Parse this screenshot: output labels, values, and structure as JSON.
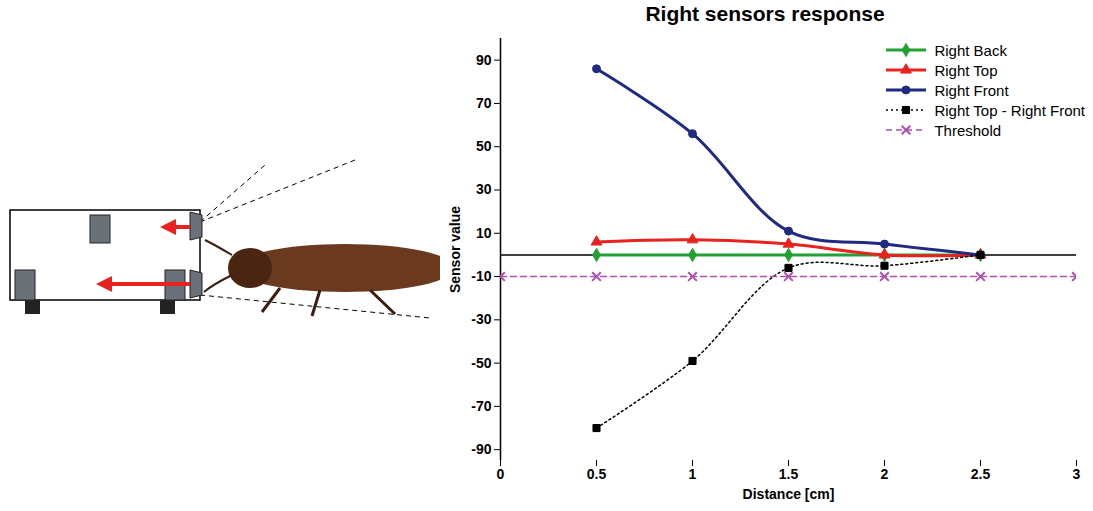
{
  "chart_data": {
    "type": "line",
    "title": "Right sensors response",
    "x_label": "Distance [cm]",
    "y_label": "Sensor value",
    "x": [
      0,
      0.5,
      1,
      1.5,
      2,
      2.5,
      3
    ],
    "xlim": [
      0,
      3
    ],
    "xticks": [
      0,
      0.5,
      1,
      1.5,
      2,
      2.5,
      3
    ],
    "ylim": [
      -95,
      100
    ],
    "yticks": [
      -90,
      -70,
      -50,
      -30,
      -10,
      10,
      30,
      50,
      70,
      90
    ],
    "legend": "top-right",
    "series": [
      {
        "name": "Right Back",
        "color": "#22a033",
        "marker": "diamond",
        "line_style": "solid",
        "values": [
          null,
          0,
          0,
          0,
          0,
          0,
          null
        ]
      },
      {
        "name": "Right Top",
        "color": "#e8231f",
        "marker": "triangle",
        "line_style": "solid",
        "values": [
          null,
          6,
          7,
          5,
          0,
          0,
          null
        ]
      },
      {
        "name": "Right Front",
        "color": "#1f2a80",
        "marker": "circle",
        "line_style": "solid",
        "values": [
          null,
          86,
          56,
          11,
          5,
          0,
          null
        ]
      },
      {
        "name": "Right Top - Right Front",
        "color": "#000000",
        "marker": "square",
        "line_style": "dotted",
        "values": [
          null,
          -80,
          -49,
          -6,
          -5,
          0,
          null
        ]
      },
      {
        "name": "Threshold",
        "color": "#b04fb0",
        "marker": "times",
        "line_style": "dashed",
        "values": [
          -10,
          -10,
          -10,
          -10,
          -10,
          -10,
          -10
        ]
      }
    ]
  }
}
